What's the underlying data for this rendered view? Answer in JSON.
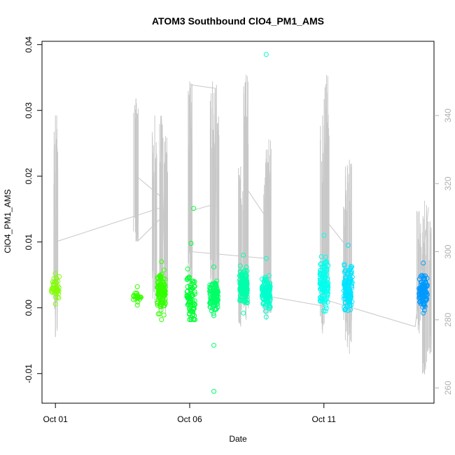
{
  "chart_data": {
    "type": "scatter",
    "title": "ATOM3 Southbound ClO4_PM1_AMS",
    "xlabel": "Date",
    "ylabel": "ClO4_PM1_AMS",
    "x_ticks": [
      {
        "label": "Oct 01",
        "day": 1
      },
      {
        "label": "Oct 06",
        "day": 6
      },
      {
        "label": "Oct 11",
        "day": 11
      }
    ],
    "y_ticks": [
      "-0.01",
      "0.00",
      "0.01",
      "0.02",
      "0.03",
      "0.04"
    ],
    "y_right_ticks": [
      "260",
      "280",
      "300",
      "320",
      "340"
    ],
    "xlim": [
      0.5,
      15.1
    ],
    "ylim": [
      -0.0145,
      0.0405
    ],
    "y_right_lim": [
      255.5,
      361.8
    ],
    "grid": false,
    "colors": {
      "altitude_line": "#c8c8c8",
      "clusters": [
        "#80ff00",
        "#33ff00",
        "#00ff33",
        "#00ff66",
        "#00ffaa",
        "#00ffcc",
        "#00ffee",
        "#00e5ff",
        "#0099ff"
      ]
    },
    "point_clusters": [
      {
        "day": 1.0,
        "y_center": 0.003,
        "y_min": 0.0006,
        "y_max": 0.0052,
        "color": "#80ff00",
        "n": 35
      },
      {
        "day": 4.05,
        "y_center": 0.0016,
        "y_min": 0.0004,
        "y_max": 0.0032,
        "color": "#33ff00",
        "n": 25
      },
      {
        "day": 4.95,
        "y_center": 0.0025,
        "y_min": -0.0018,
        "y_max": 0.007,
        "color": "#33ff00",
        "n": 120
      },
      {
        "day": 6.05,
        "y_center": 0.0015,
        "y_min": -0.0018,
        "y_max": 0.0098,
        "color": "#00ff33",
        "n": 80
      },
      {
        "day": 6.9,
        "y_center": 0.0018,
        "y_min": -0.0012,
        "y_max": 0.0062,
        "color": "#00ff66",
        "n": 110
      },
      {
        "day": 8.0,
        "y_center": 0.003,
        "y_min": -0.0008,
        "y_max": 0.008,
        "color": "#00ffaa",
        "n": 130
      },
      {
        "day": 8.85,
        "y_center": 0.0025,
        "y_min": -0.0014,
        "y_max": 0.0075,
        "color": "#00ffcc",
        "n": 110
      },
      {
        "day": 11.0,
        "y_center": 0.0035,
        "y_min": -0.0005,
        "y_max": 0.011,
        "color": "#00ffee",
        "n": 120
      },
      {
        "day": 11.9,
        "y_center": 0.003,
        "y_min": -0.0004,
        "y_max": 0.0095,
        "color": "#00e5ff",
        "n": 130
      },
      {
        "day": 14.7,
        "y_center": 0.0025,
        "y_min": -0.0008,
        "y_max": 0.0068,
        "color": "#0099ff",
        "n": 110
      }
    ],
    "outliers": [
      {
        "day": 6.15,
        "y": 0.0151,
        "color": "#00ff33"
      },
      {
        "day": 6.9,
        "y": -0.0057,
        "color": "#00ff66"
      },
      {
        "day": 6.9,
        "y": -0.0127,
        "color": "#00ff66"
      },
      {
        "day": 8.85,
        "y": 0.0385,
        "color": "#00ffcc"
      }
    ],
    "altitude_segments": [
      {
        "from": [
          1.0,
          275
        ],
        "to": [
          1.05,
          340
        ]
      },
      {
        "from": [
          1.05,
          303
        ],
        "to": [
          4.95,
          313
        ]
      },
      {
        "from": [
          4.0,
          345
        ],
        "to": [
          4.05,
          303
        ]
      },
      {
        "from": [
          4.05,
          303
        ],
        "to": [
          4.95,
          310
        ]
      },
      {
        "from": [
          4.05,
          322
        ],
        "to": [
          4.95,
          316
        ]
      },
      {
        "from": [
          4.95,
          339
        ],
        "to": [
          5.1,
          282
        ]
      },
      {
        "from": [
          6.0,
          348
        ],
        "to": [
          6.1,
          300
        ]
      },
      {
        "from": [
          6.1,
          300
        ],
        "to": [
          8.85,
          298
        ]
      },
      {
        "from": [
          6.05,
          312
        ],
        "to": [
          6.95,
          314
        ]
      },
      {
        "from": [
          6.05,
          349
        ],
        "to": [
          6.95,
          348
        ]
      },
      {
        "from": [
          6.95,
          348
        ],
        "to": [
          7.0,
          300
        ]
      },
      {
        "from": [
          8.0,
          320
        ],
        "to": [
          8.85,
          310
        ]
      },
      {
        "from": [
          8.85,
          305
        ],
        "to": [
          8.9,
          330
        ]
      },
      {
        "from": [
          8.85,
          287
        ],
        "to": [
          11.0,
          284
        ]
      },
      {
        "from": [
          11.0,
          310
        ],
        "to": [
          11.9,
          301
        ]
      },
      {
        "from": [
          11.0,
          286
        ],
        "to": [
          14.4,
          278
        ]
      },
      {
        "from": [
          14.4,
          278
        ],
        "to": [
          14.9,
          313
        ]
      }
    ],
    "altitude_spikes": [
      {
        "day": 1.0,
        "low": 275,
        "high": 340
      },
      {
        "day": 4.0,
        "low": 303,
        "high": 345
      },
      {
        "day": 4.7,
        "low": 285,
        "high": 340
      },
      {
        "day": 4.95,
        "low": 282,
        "high": 340
      },
      {
        "day": 5.1,
        "low": 285,
        "high": 334
      },
      {
        "day": 6.0,
        "low": 285,
        "high": 350
      },
      {
        "day": 6.85,
        "low": 285,
        "high": 350
      },
      {
        "day": 7.0,
        "low": 284,
        "high": 349
      },
      {
        "day": 7.9,
        "low": 278,
        "high": 325
      },
      {
        "day": 8.1,
        "low": 280,
        "high": 352
      },
      {
        "day": 8.85,
        "low": 280,
        "high": 330
      },
      {
        "day": 8.95,
        "low": 282,
        "high": 333
      },
      {
        "day": 10.95,
        "low": 276,
        "high": 340
      },
      {
        "day": 11.1,
        "low": 285,
        "high": 352
      },
      {
        "day": 11.8,
        "low": 274,
        "high": 325
      },
      {
        "day": 11.95,
        "low": 270,
        "high": 327
      },
      {
        "day": 14.55,
        "low": 276,
        "high": 312
      },
      {
        "day": 14.75,
        "low": 264,
        "high": 315
      },
      {
        "day": 14.95,
        "low": 270,
        "high": 309
      }
    ]
  }
}
